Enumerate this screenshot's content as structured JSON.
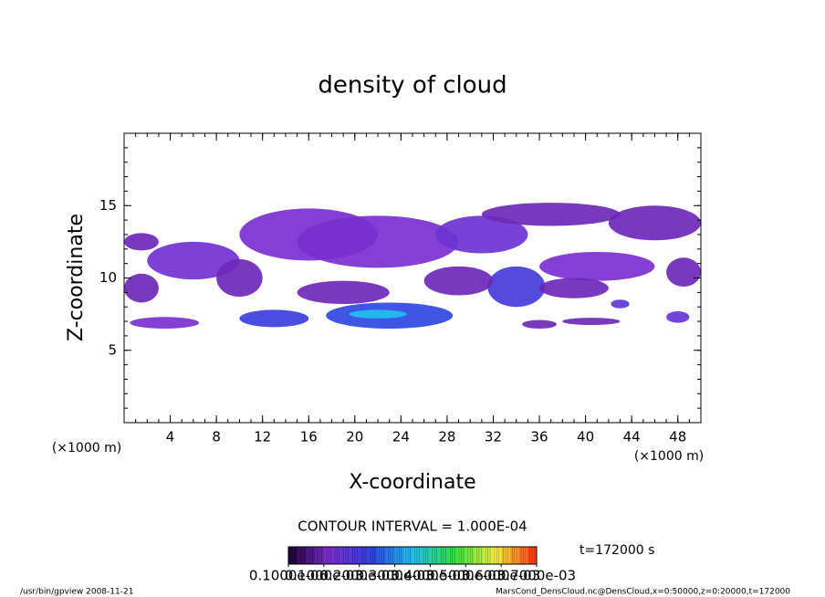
{
  "chart_data": {
    "type": "contour",
    "title": "density of cloud",
    "xlabel": "X-coordinate",
    "ylabel": "Z-coordinate",
    "xunit": "(×1000 m)",
    "yunit": "(×1000 m)",
    "xlim": [
      0,
      50
    ],
    "xticks": [
      4,
      8,
      12,
      16,
      20,
      24,
      28,
      32,
      36,
      40,
      44,
      48
    ],
    "xminor": 1,
    "ylim": [
      0,
      20
    ],
    "yticks": [
      5,
      10,
      15
    ],
    "yminor": 1,
    "regions": {
      "x": [
        3.5,
        1.5,
        6,
        1.5,
        10,
        13,
        16,
        22,
        31,
        37,
        46,
        23,
        22,
        19,
        34,
        29,
        41,
        39,
        48.5,
        40.5,
        48,
        43,
        36
      ],
      "z": [
        6.9,
        9.3,
        11.2,
        12.5,
        10,
        7.2,
        13,
        12.5,
        13,
        14.4,
        13.8,
        7.4,
        7.5,
        9,
        9.4,
        9.8,
        10.8,
        9.3,
        10.4,
        7,
        7.3,
        8.2,
        6.8
      ],
      "width": [
        3,
        1.5,
        4,
        1.5,
        2,
        3,
        6,
        7,
        4,
        6,
        4,
        5.5,
        2.5,
        4,
        2.5,
        3,
        5,
        3,
        1.5,
        2.5,
        1,
        0.8,
        1.5
      ],
      "height": [
        0.4,
        1,
        1.3,
        0.6,
        1.3,
        0.6,
        1.8,
        1.8,
        1.3,
        0.8,
        1.2,
        0.9,
        0.3,
        0.8,
        1.4,
        1,
        1,
        0.7,
        1,
        0.25,
        0.4,
        0.3,
        0.3
      ],
      "values": [
        0.00012,
        0.0001,
        0.00013,
        0.0001,
        0.0001,
        0.00022,
        0.00012,
        0.00012,
        0.00014,
        0.0001,
        0.0001,
        0.00024,
        0.00035,
        0.0001,
        0.0002,
        0.0001,
        0.00012,
        0.0001,
        0.0001,
        0.0001,
        0.00015,
        0.00016,
        0.0001
      ]
    },
    "clim": [
      0,
      0.0007
    ],
    "colormap": [
      "#1a0030",
      "#7b2fd0",
      "#3040e0",
      "#20c0f0",
      "#30e040",
      "#f0f040",
      "#ff3010"
    ],
    "colorbar_bins": 28,
    "colorbar_ticks": [
      {
        "value": 1e-07,
        "label": "0.1000e-06"
      },
      {
        "value": 0.0001,
        "label": "0.1000e-03"
      },
      {
        "value": 0.0002,
        "label": "0.2000e-03"
      },
      {
        "value": 0.0003,
        "label": "0.3000e-03"
      },
      {
        "value": 0.0004,
        "label": "0.4000e-03"
      },
      {
        "value": 0.0005,
        "label": "0.5000e-03"
      },
      {
        "value": 0.0006,
        "label": "0.6000e-03"
      },
      {
        "value": 0.0007,
        "label": "0.7000e-03"
      }
    ],
    "contour_interval": "CONTOUR INTERVAL = 1.000E-04",
    "time_label": "t=172000 s",
    "footer_left": "/usr/bin/gpview   2008-11-21",
    "footer_right": "MarsCond_DensCloud.nc@DensCloud,x=0:50000,z=0:20000,t=172000"
  }
}
